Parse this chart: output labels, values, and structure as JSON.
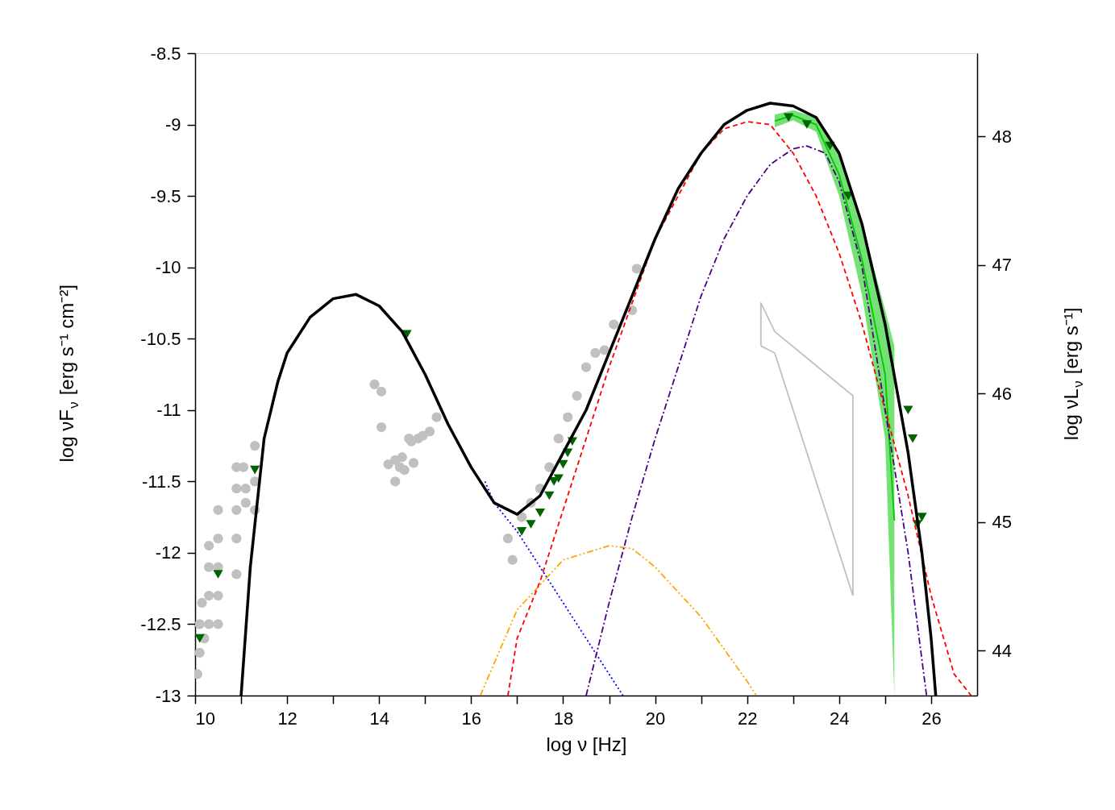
{
  "chart_data": {
    "type": "line",
    "xlabel": "log ν [Hz]",
    "ylabel": "log νF$_{ν}$ [erg s⁻¹ cm⁻²]",
    "y2label": "log νL$_{ν}$ [erg s⁻¹]",
    "xlim": [
      10,
      27
    ],
    "ylim": [
      -13,
      -8.5
    ],
    "y2lim": [
      43.649,
      48.646
    ],
    "xticks": [
      10,
      {
        "value": 11,
        "label": null
      },
      12,
      {
        "value": 13,
        "label": null
      },
      14,
      {
        "value": 15,
        "label": null
      },
      16,
      {
        "value": 17,
        "label": null
      },
      18,
      {
        "value": 19,
        "label": null
      },
      20,
      {
        "value": 21,
        "label": null
      },
      22,
      {
        "value": 23,
        "label": null
      },
      24,
      {
        "value": 25,
        "label": null
      },
      26
    ],
    "yticks": [
      -13,
      -12.5,
      -12,
      -11.5,
      -11,
      -10.5,
      -10,
      -9.5,
      -9,
      -8.5
    ],
    "y2ticks": [
      44,
      45,
      46,
      47,
      48
    ],
    "grid": false,
    "series": [
      {
        "type": "line",
        "line_style": "solid",
        "color": "#00c800",
        "x": [
          22.6,
          23.0,
          23.5,
          24.0,
          24.5,
          25.0,
          25.2
        ],
        "values": [
          -8.975,
          -8.935,
          -9.0,
          -9.35,
          -9.95,
          -10.75,
          -11.775
        ],
        "lower": [
          -9.02,
          -8.97,
          -9.05,
          -9.5,
          -10.2,
          -11.2,
          -13.0
        ],
        "upper": [
          -8.93,
          -8.9,
          -8.95,
          -9.2,
          -9.7,
          -10.3,
          -10.55
        ]
      },
      {
        "type": "line",
        "line_style": "solid",
        "color": "#c0c0c0",
        "x": [
          22.3,
          22.3,
          22.6,
          24.3,
          24.3
        ],
        "values": [
          -10.55,
          -10.25,
          -10.45,
          -10.9,
          -12.3
        ]
      },
      {
        "type": "line",
        "line_style": "solid",
        "color": "#c0c0c0",
        "x": [
          22.3,
          22.6,
          24.3
        ],
        "values": [
          -10.55,
          -10.6,
          -12.3
        ]
      },
      {
        "type": "scatter",
        "marker": "circle",
        "color": "#c0c0c0",
        "x": [
          10.05,
          10.1,
          10.1,
          10.15,
          10.2,
          10.3,
          10.3,
          10.3,
          10.3,
          10.5,
          10.5,
          10.5,
          10.5,
          10.5,
          10.9,
          10.9,
          10.9,
          10.9,
          10.9,
          11.05,
          11.1,
          11.1,
          11.3,
          11.3,
          11.3,
          13.9,
          14.05,
          14.05,
          14.2,
          14.35,
          14.35,
          14.45,
          14.5,
          14.55,
          14.65,
          14.7,
          14.75,
          14.85,
          14.95,
          15.1,
          15.25,
          16.8,
          16.9,
          17.1,
          17.3,
          17.5,
          17.7,
          17.9,
          18.1,
          18.3,
          18.5,
          18.7,
          18.9,
          19.1,
          19.5,
          19.6
        ],
        "values": [
          -12.85,
          -12.7,
          -12.5,
          -12.35,
          -12.6,
          -12.5,
          -12.3,
          -12.1,
          -11.95,
          -11.7,
          -11.9,
          -12.1,
          -12.3,
          -12.5,
          -11.4,
          -11.55,
          -11.7,
          -11.9,
          -12.15,
          -11.4,
          -11.55,
          -11.65,
          -11.25,
          -11.5,
          -11.7,
          -10.82,
          -10.87,
          -11.12,
          -11.38,
          -11.35,
          -11.5,
          -11.4,
          -11.33,
          -11.42,
          -11.2,
          -11.22,
          -11.37,
          -11.2,
          -11.18,
          -11.15,
          -11.05,
          -11.9,
          -12.05,
          -11.75,
          -11.65,
          -11.55,
          -11.4,
          -11.2,
          -11.05,
          -10.9,
          -10.7,
          -10.6,
          -10.58,
          -10.4,
          -10.3,
          -10.01
        ]
      },
      {
        "type": "scatter",
        "marker": "triangle",
        "color": "#006400",
        "x": [
          10.1,
          10.5,
          11.3,
          14.6,
          17.1,
          17.3,
          17.5,
          17.7,
          17.8,
          17.9,
          18.0,
          18.1,
          18.2,
          22.9,
          23.3,
          23.8,
          24.2,
          25.5,
          25.6,
          25.7,
          25.8
        ],
        "values": [
          -12.6,
          -12.15,
          -11.42,
          -10.47,
          -11.85,
          -11.8,
          -11.72,
          -11.6,
          -11.5,
          -11.48,
          -11.38,
          -11.3,
          -11.22,
          -8.95,
          -9.0,
          -9.15,
          -9.5,
          -11.0,
          -11.2,
          -11.8,
          -11.75
        ]
      },
      {
        "color": "#0000ff",
        "line_style": "dotted",
        "x": [
          16.3,
          16.5,
          17.0,
          17.5,
          18.0,
          18.5,
          19.0,
          19.3
        ],
        "values": [
          -11.5,
          -11.65,
          -11.85,
          -12.1,
          -12.35,
          -12.6,
          -12.85,
          -13.0
        ]
      },
      {
        "color": "#ffa500",
        "line_style": "dashdotdot",
        "x": [
          16.2,
          17.0,
          18.0,
          19.0,
          19.5,
          20.0,
          21.0,
          22.0,
          22.2
        ],
        "values": [
          -13.0,
          -12.4,
          -12.05,
          -11.95,
          -11.97,
          -12.1,
          -12.45,
          -12.9,
          -13.0
        ]
      },
      {
        "color": "#ff0000",
        "line_style": "dashed",
        "x": [
          16.8,
          17.0,
          17.5,
          18.0,
          18.5,
          19.0,
          20.0,
          21.0,
          21.5,
          22.0,
          22.5,
          23.0,
          23.5,
          24.0,
          24.5,
          25.0,
          25.5,
          26.0,
          26.5,
          26.87
        ],
        "values": [
          -13.0,
          -12.6,
          -12.2,
          -11.7,
          -11.2,
          -10.7,
          -9.8,
          -9.2,
          -9.03,
          -8.98,
          -9.0,
          -9.2,
          -9.5,
          -9.9,
          -10.4,
          -11.0,
          -11.6,
          -12.3,
          -12.85,
          -13.0
        ]
      },
      {
        "color": "#4b0082",
        "line_style": "dashdot",
        "x": [
          18.5,
          19.0,
          19.5,
          20.0,
          20.5,
          21.0,
          21.5,
          22.0,
          22.5,
          23.0,
          23.3,
          23.7,
          24.0,
          24.5,
          25.0,
          25.5,
          25.9
        ],
        "values": [
          -13.0,
          -12.35,
          -11.75,
          -11.2,
          -10.7,
          -10.2,
          -9.8,
          -9.5,
          -9.28,
          -9.17,
          -9.15,
          -9.2,
          -9.4,
          -10.0,
          -11.0,
          -12.0,
          -13.0
        ]
      },
      {
        "color": "#000000",
        "line_style": "solid",
        "x": [
          11.0,
          11.2,
          11.5,
          11.8,
          12.0,
          12.5,
          13.0,
          13.5,
          14.0,
          14.5,
          15.0,
          15.5,
          16.0,
          16.5,
          17.0,
          17.5,
          18.0,
          18.5,
          19.0,
          19.5,
          20.0,
          20.5,
          21.0,
          21.5,
          22.0,
          22.5,
          23.0,
          23.5,
          24.0,
          24.5,
          25.0,
          25.5,
          25.8,
          26.0,
          26.1
        ],
        "values": [
          -13.0,
          -12.1,
          -11.2,
          -10.8,
          -10.6,
          -10.35,
          -10.22,
          -10.19,
          -10.27,
          -10.45,
          -10.75,
          -11.1,
          -11.4,
          -11.65,
          -11.73,
          -11.6,
          -11.3,
          -11.0,
          -10.6,
          -10.2,
          -9.8,
          -9.45,
          -9.2,
          -9.0,
          -8.9,
          -8.85,
          -8.87,
          -8.95,
          -9.2,
          -9.7,
          -10.4,
          -11.3,
          -12.0,
          -12.6,
          -13.0
        ]
      }
    ]
  }
}
